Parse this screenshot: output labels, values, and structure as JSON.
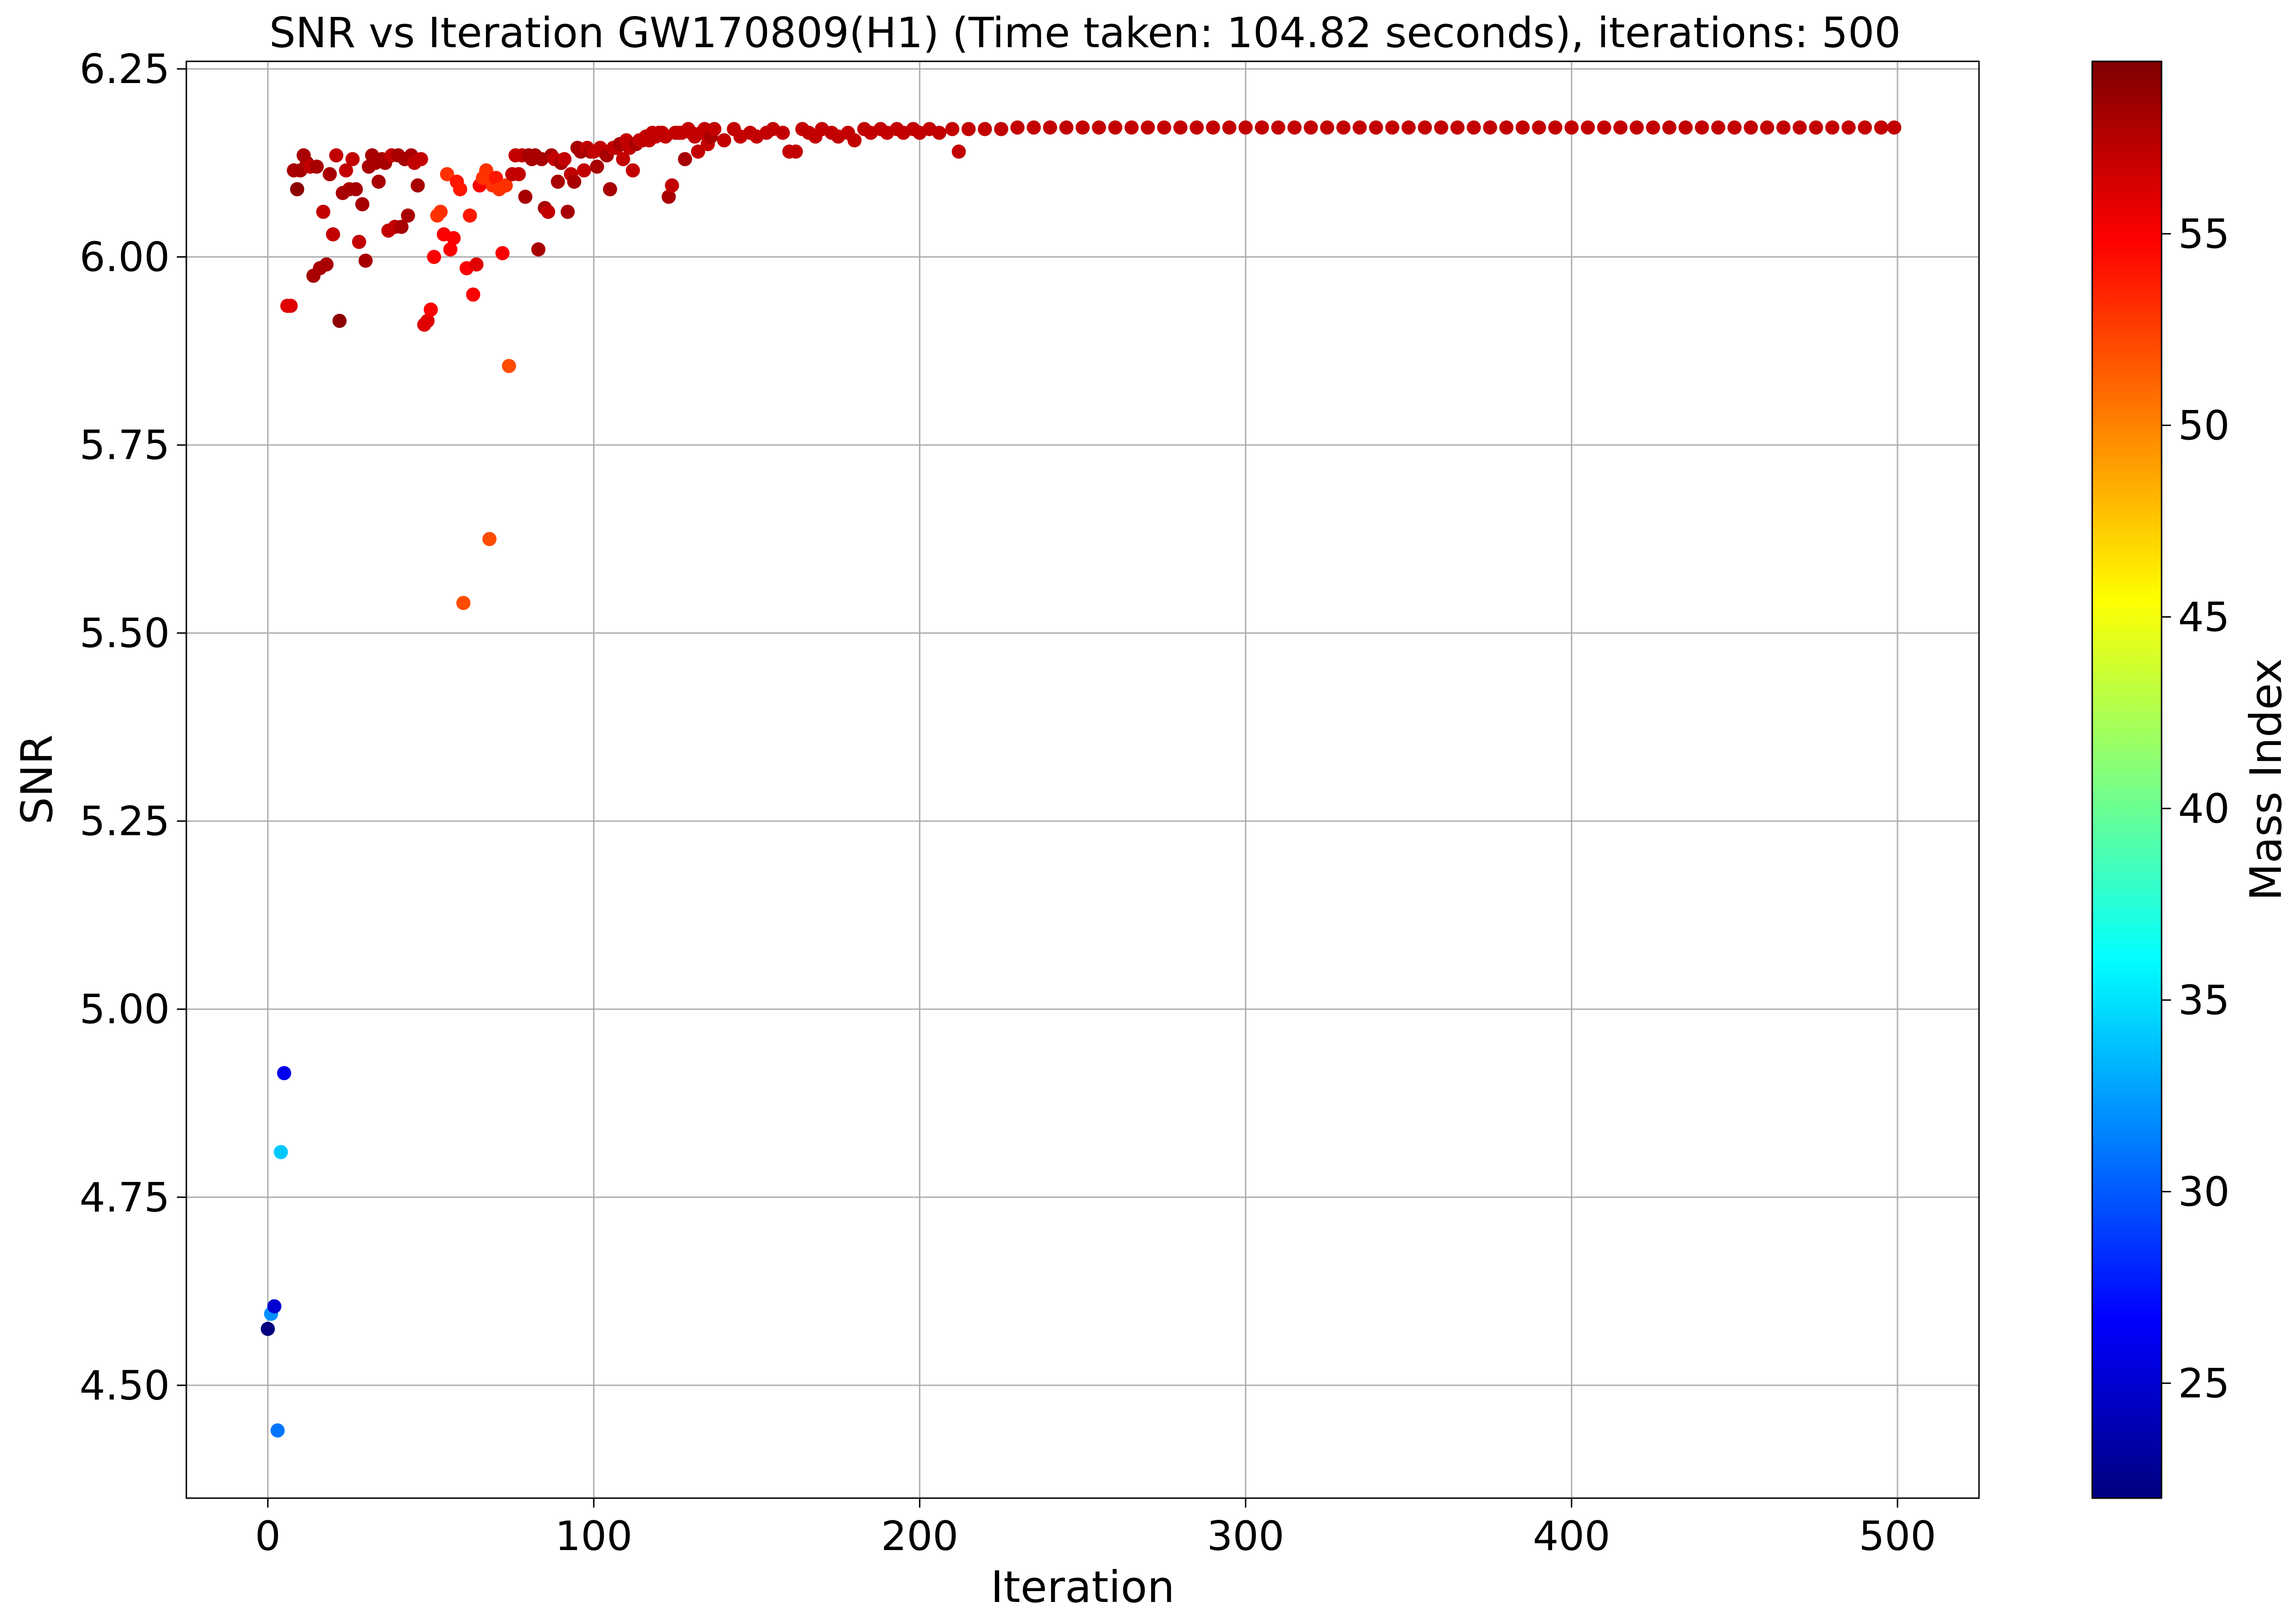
{
  "chart_data": {
    "type": "scatter",
    "title": "SNR vs Iteration GW170809(H1) (Time taken: 104.82 seconds), iterations: 500",
    "xlabel": "Iteration",
    "ylabel": "SNR",
    "xlim": [
      -25,
      525
    ],
    "ylim": [
      4.35,
      6.26
    ],
    "x_ticks": [
      0,
      100,
      200,
      300,
      400,
      500
    ],
    "x_tick_labels": [
      "0",
      "100",
      "200",
      "300",
      "400",
      "500"
    ],
    "y_ticks": [
      4.5,
      4.75,
      5.0,
      5.25,
      5.5,
      5.75,
      6.0,
      6.25
    ],
    "y_tick_labels": [
      "4.50",
      "4.75",
      "5.00",
      "5.25",
      "5.50",
      "5.75",
      "6.00",
      "6.25"
    ],
    "grid": true,
    "colorbar": {
      "label": "Mass Index",
      "colormap": "jet",
      "range": [
        22,
        59.5
      ],
      "ticks": [
        25,
        30,
        35,
        40,
        45,
        50,
        55
      ],
      "tick_labels": [
        "25",
        "30",
        "35",
        "40",
        "45",
        "50",
        "55"
      ],
      "colors": [
        "#00007f",
        "#0000ff",
        "#007fff",
        "#00ffff",
        "#7fff7f",
        "#ffff00",
        "#ff7f00",
        "#ff0000",
        "#7f0000"
      ]
    },
    "points": [
      [
        0,
        4.575,
        22
      ],
      [
        1,
        4.595,
        32
      ],
      [
        2,
        4.605,
        25
      ],
      [
        3,
        4.44,
        31
      ],
      [
        4,
        4.81,
        34
      ],
      [
        5,
        4.915,
        26
      ],
      [
        6,
        5.935,
        56
      ],
      [
        7,
        5.935,
        56
      ],
      [
        8,
        6.115,
        58
      ],
      [
        9,
        6.09,
        59
      ],
      [
        10,
        6.115,
        58
      ],
      [
        11,
        6.135,
        58
      ],
      [
        12,
        6.125,
        58
      ],
      [
        13,
        6.12,
        57
      ],
      [
        14,
        5.975,
        58
      ],
      [
        15,
        6.12,
        58
      ],
      [
        16,
        5.985,
        58
      ],
      [
        17,
        6.06,
        57
      ],
      [
        18,
        5.99,
        58
      ],
      [
        19,
        6.11,
        58
      ],
      [
        20,
        6.03,
        57
      ],
      [
        21,
        6.135,
        57
      ],
      [
        22,
        5.915,
        59
      ],
      [
        23,
        6.085,
        58
      ],
      [
        24,
        6.115,
        57
      ],
      [
        25,
        6.09,
        58
      ],
      [
        26,
        6.13,
        57
      ],
      [
        27,
        6.09,
        58
      ],
      [
        28,
        6.02,
        57
      ],
      [
        29,
        6.07,
        58
      ],
      [
        30,
        5.995,
        58
      ],
      [
        31,
        6.12,
        58
      ],
      [
        32,
        6.135,
        58
      ],
      [
        33,
        6.125,
        58
      ],
      [
        34,
        6.1,
        58
      ],
      [
        35,
        6.13,
        58
      ],
      [
        36,
        6.125,
        58
      ],
      [
        37,
        6.035,
        57
      ],
      [
        38,
        6.135,
        57
      ],
      [
        39,
        6.04,
        57
      ],
      [
        40,
        6.135,
        58
      ],
      [
        41,
        6.04,
        58
      ],
      [
        42,
        6.13,
        58
      ],
      [
        43,
        6.055,
        58
      ],
      [
        44,
        6.135,
        58
      ],
      [
        45,
        6.125,
        57
      ],
      [
        46,
        6.095,
        58
      ],
      [
        47,
        6.13,
        57
      ],
      [
        48,
        5.91,
        56
      ],
      [
        49,
        5.915,
        56
      ],
      [
        50,
        5.93,
        55
      ],
      [
        51,
        6.0,
        55
      ],
      [
        52,
        6.055,
        53
      ],
      [
        53,
        6.06,
        53
      ],
      [
        54,
        6.03,
        55
      ],
      [
        55,
        6.11,
        53
      ],
      [
        56,
        6.01,
        55
      ],
      [
        57,
        6.025,
        55
      ],
      [
        58,
        6.1,
        54
      ],
      [
        59,
        6.09,
        54
      ],
      [
        60,
        5.54,
        52
      ],
      [
        61,
        5.985,
        55
      ],
      [
        62,
        6.055,
        54
      ],
      [
        63,
        5.95,
        55
      ],
      [
        64,
        5.99,
        56
      ],
      [
        65,
        6.095,
        55
      ],
      [
        66,
        6.105,
        53
      ],
      [
        67,
        6.115,
        53
      ],
      [
        68,
        5.625,
        52
      ],
      [
        69,
        6.095,
        53
      ],
      [
        70,
        6.105,
        54
      ],
      [
        71,
        6.09,
        53
      ],
      [
        72,
        6.005,
        55
      ],
      [
        73,
        6.095,
        53
      ],
      [
        74,
        5.855,
        52
      ],
      [
        75,
        6.11,
        57
      ],
      [
        76,
        6.135,
        57
      ],
      [
        77,
        6.11,
        57
      ],
      [
        78,
        6.135,
        57
      ],
      [
        79,
        6.08,
        58
      ],
      [
        80,
        6.135,
        58
      ],
      [
        81,
        6.13,
        58
      ],
      [
        82,
        6.135,
        58
      ],
      [
        83,
        6.01,
        58
      ],
      [
        84,
        6.13,
        58
      ],
      [
        85,
        6.065,
        58
      ],
      [
        86,
        6.06,
        57
      ],
      [
        87,
        6.135,
        58
      ],
      [
        88,
        6.13,
        57
      ],
      [
        89,
        6.1,
        58
      ],
      [
        90,
        6.125,
        58
      ],
      [
        91,
        6.13,
        57
      ],
      [
        92,
        6.06,
        58
      ],
      [
        93,
        6.11,
        57
      ],
      [
        94,
        6.1,
        58
      ],
      [
        95,
        6.145,
        58
      ],
      [
        96,
        6.14,
        58
      ],
      [
        97,
        6.115,
        57
      ],
      [
        98,
        6.145,
        57
      ],
      [
        99,
        6.14,
        58
      ],
      [
        100,
        6.14,
        57
      ],
      [
        101,
        6.12,
        58
      ],
      [
        102,
        6.145,
        57
      ],
      [
        103,
        6.14,
        57
      ],
      [
        104,
        6.135,
        58
      ],
      [
        105,
        6.09,
        58
      ],
      [
        106,
        6.145,
        57
      ],
      [
        107,
        6.145,
        57
      ],
      [
        108,
        6.15,
        58
      ],
      [
        109,
        6.13,
        57
      ],
      [
        110,
        6.155,
        57
      ],
      [
        111,
        6.145,
        57
      ],
      [
        112,
        6.115,
        57
      ],
      [
        113,
        6.15,
        58
      ],
      [
        114,
        6.155,
        57
      ],
      [
        115,
        6.155,
        57
      ],
      [
        116,
        6.16,
        57
      ],
      [
        117,
        6.155,
        57
      ],
      [
        118,
        6.165,
        57
      ],
      [
        119,
        6.16,
        57
      ],
      [
        120,
        6.165,
        57
      ],
      [
        121,
        6.165,
        57
      ],
      [
        122,
        6.16,
        57
      ],
      [
        123,
        6.08,
        58
      ],
      [
        124,
        6.095,
        57
      ],
      [
        125,
        6.165,
        57
      ],
      [
        126,
        6.165,
        57
      ],
      [
        127,
        6.165,
        57
      ],
      [
        128,
        6.13,
        58
      ],
      [
        129,
        6.17,
        57
      ],
      [
        130,
        6.165,
        57
      ],
      [
        131,
        6.16,
        57
      ],
      [
        132,
        6.14,
        57
      ],
      [
        133,
        6.165,
        57
      ],
      [
        134,
        6.17,
        57
      ],
      [
        135,
        6.15,
        57
      ],
      [
        136,
        6.16,
        58
      ],
      [
        137,
        6.17,
        57
      ],
      [
        140,
        6.155,
        57
      ],
      [
        143,
        6.17,
        57
      ],
      [
        145,
        6.16,
        57
      ],
      [
        148,
        6.165,
        57
      ],
      [
        150,
        6.16,
        57
      ],
      [
        153,
        6.165,
        57
      ],
      [
        155,
        6.17,
        57
      ],
      [
        158,
        6.165,
        57
      ],
      [
        160,
        6.14,
        57
      ],
      [
        162,
        6.14,
        57
      ],
      [
        164,
        6.17,
        57
      ],
      [
        166,
        6.165,
        57
      ],
      [
        168,
        6.16,
        57
      ],
      [
        170,
        6.17,
        57
      ],
      [
        173,
        6.165,
        57
      ],
      [
        175,
        6.16,
        57
      ],
      [
        178,
        6.165,
        57
      ],
      [
        180,
        6.155,
        57
      ],
      [
        183,
        6.17,
        57
      ],
      [
        185,
        6.165,
        57
      ],
      [
        188,
        6.17,
        57
      ],
      [
        190,
        6.165,
        57
      ],
      [
        193,
        6.17,
        57
      ],
      [
        195,
        6.165,
        57
      ],
      [
        198,
        6.17,
        57
      ],
      [
        200,
        6.165,
        57
      ],
      [
        203,
        6.17,
        57
      ],
      [
        206,
        6.165,
        57
      ],
      [
        210,
        6.17,
        57
      ],
      [
        212,
        6.14,
        57
      ],
      [
        215,
        6.17,
        57
      ],
      [
        220,
        6.17,
        57
      ],
      [
        225,
        6.17,
        57
      ],
      [
        230,
        6.172,
        57
      ],
      [
        235,
        6.172,
        57
      ],
      [
        240,
        6.172,
        57
      ],
      [
        245,
        6.172,
        57
      ],
      [
        250,
        6.172,
        57
      ],
      [
        255,
        6.172,
        57
      ],
      [
        260,
        6.172,
        57
      ],
      [
        265,
        6.172,
        57
      ],
      [
        270,
        6.172,
        57
      ],
      [
        275,
        6.172,
        57
      ],
      [
        280,
        6.172,
        57
      ],
      [
        285,
        6.172,
        57
      ],
      [
        290,
        6.172,
        57
      ],
      [
        295,
        6.172,
        57
      ],
      [
        300,
        6.172,
        57
      ],
      [
        305,
        6.172,
        57
      ],
      [
        310,
        6.172,
        57
      ],
      [
        315,
        6.172,
        57
      ],
      [
        320,
        6.172,
        57
      ],
      [
        325,
        6.172,
        57
      ],
      [
        330,
        6.172,
        57
      ],
      [
        335,
        6.172,
        57
      ],
      [
        340,
        6.172,
        57
      ],
      [
        345,
        6.172,
        57
      ],
      [
        350,
        6.172,
        57
      ],
      [
        355,
        6.172,
        57
      ],
      [
        360,
        6.172,
        57
      ],
      [
        365,
        6.172,
        57
      ],
      [
        370,
        6.172,
        57
      ],
      [
        375,
        6.172,
        57
      ],
      [
        380,
        6.172,
        57
      ],
      [
        385,
        6.172,
        57
      ],
      [
        390,
        6.172,
        57
      ],
      [
        395,
        6.172,
        57
      ],
      [
        400,
        6.172,
        57
      ],
      [
        405,
        6.172,
        57
      ],
      [
        410,
        6.172,
        57
      ],
      [
        415,
        6.172,
        57
      ],
      [
        420,
        6.172,
        57
      ],
      [
        425,
        6.172,
        57
      ],
      [
        430,
        6.172,
        57
      ],
      [
        435,
        6.172,
        57
      ],
      [
        440,
        6.172,
        57
      ],
      [
        445,
        6.172,
        57
      ],
      [
        450,
        6.172,
        57
      ],
      [
        455,
        6.172,
        57
      ],
      [
        460,
        6.172,
        57
      ],
      [
        465,
        6.172,
        57
      ],
      [
        470,
        6.172,
        57
      ],
      [
        475,
        6.172,
        57
      ],
      [
        480,
        6.172,
        57
      ],
      [
        485,
        6.172,
        57
      ],
      [
        490,
        6.172,
        57
      ],
      [
        495,
        6.172,
        57
      ],
      [
        499,
        6.172,
        57
      ]
    ]
  }
}
